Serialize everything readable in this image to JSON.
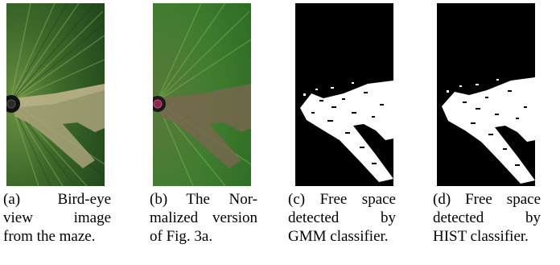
{
  "figures": [
    {
      "id": "a",
      "image_icon": "bird-eye-maze-image",
      "caption_lines": [
        "(a)     Bird-eye",
        "view        image",
        "from the maze."
      ]
    },
    {
      "id": "b",
      "image_icon": "normalized-maze-image",
      "caption_lines": [
        "(b)   The   Nor-",
        "malized version",
        "of Fig. 3a."
      ]
    },
    {
      "id": "c",
      "image_icon": "gmm-free-space-mask",
      "caption_lines": [
        "(c)  Free  space",
        "detected        by",
        "GMM classifier."
      ]
    },
    {
      "id": "d",
      "image_icon": "hist-free-space-mask",
      "caption_lines": [
        "(d)  Free  space",
        "detected        by",
        "HIST classifier."
      ]
    }
  ],
  "colors": {
    "grass_dark": "#1f4a1c",
    "grass_light": "#5f8a3a",
    "path": "#a9a27a",
    "normalized_bg": "#3e7a2e",
    "normalized_path": "#7c6a4e",
    "mask_bg": "#000000",
    "mask_fg": "#ffffff"
  }
}
